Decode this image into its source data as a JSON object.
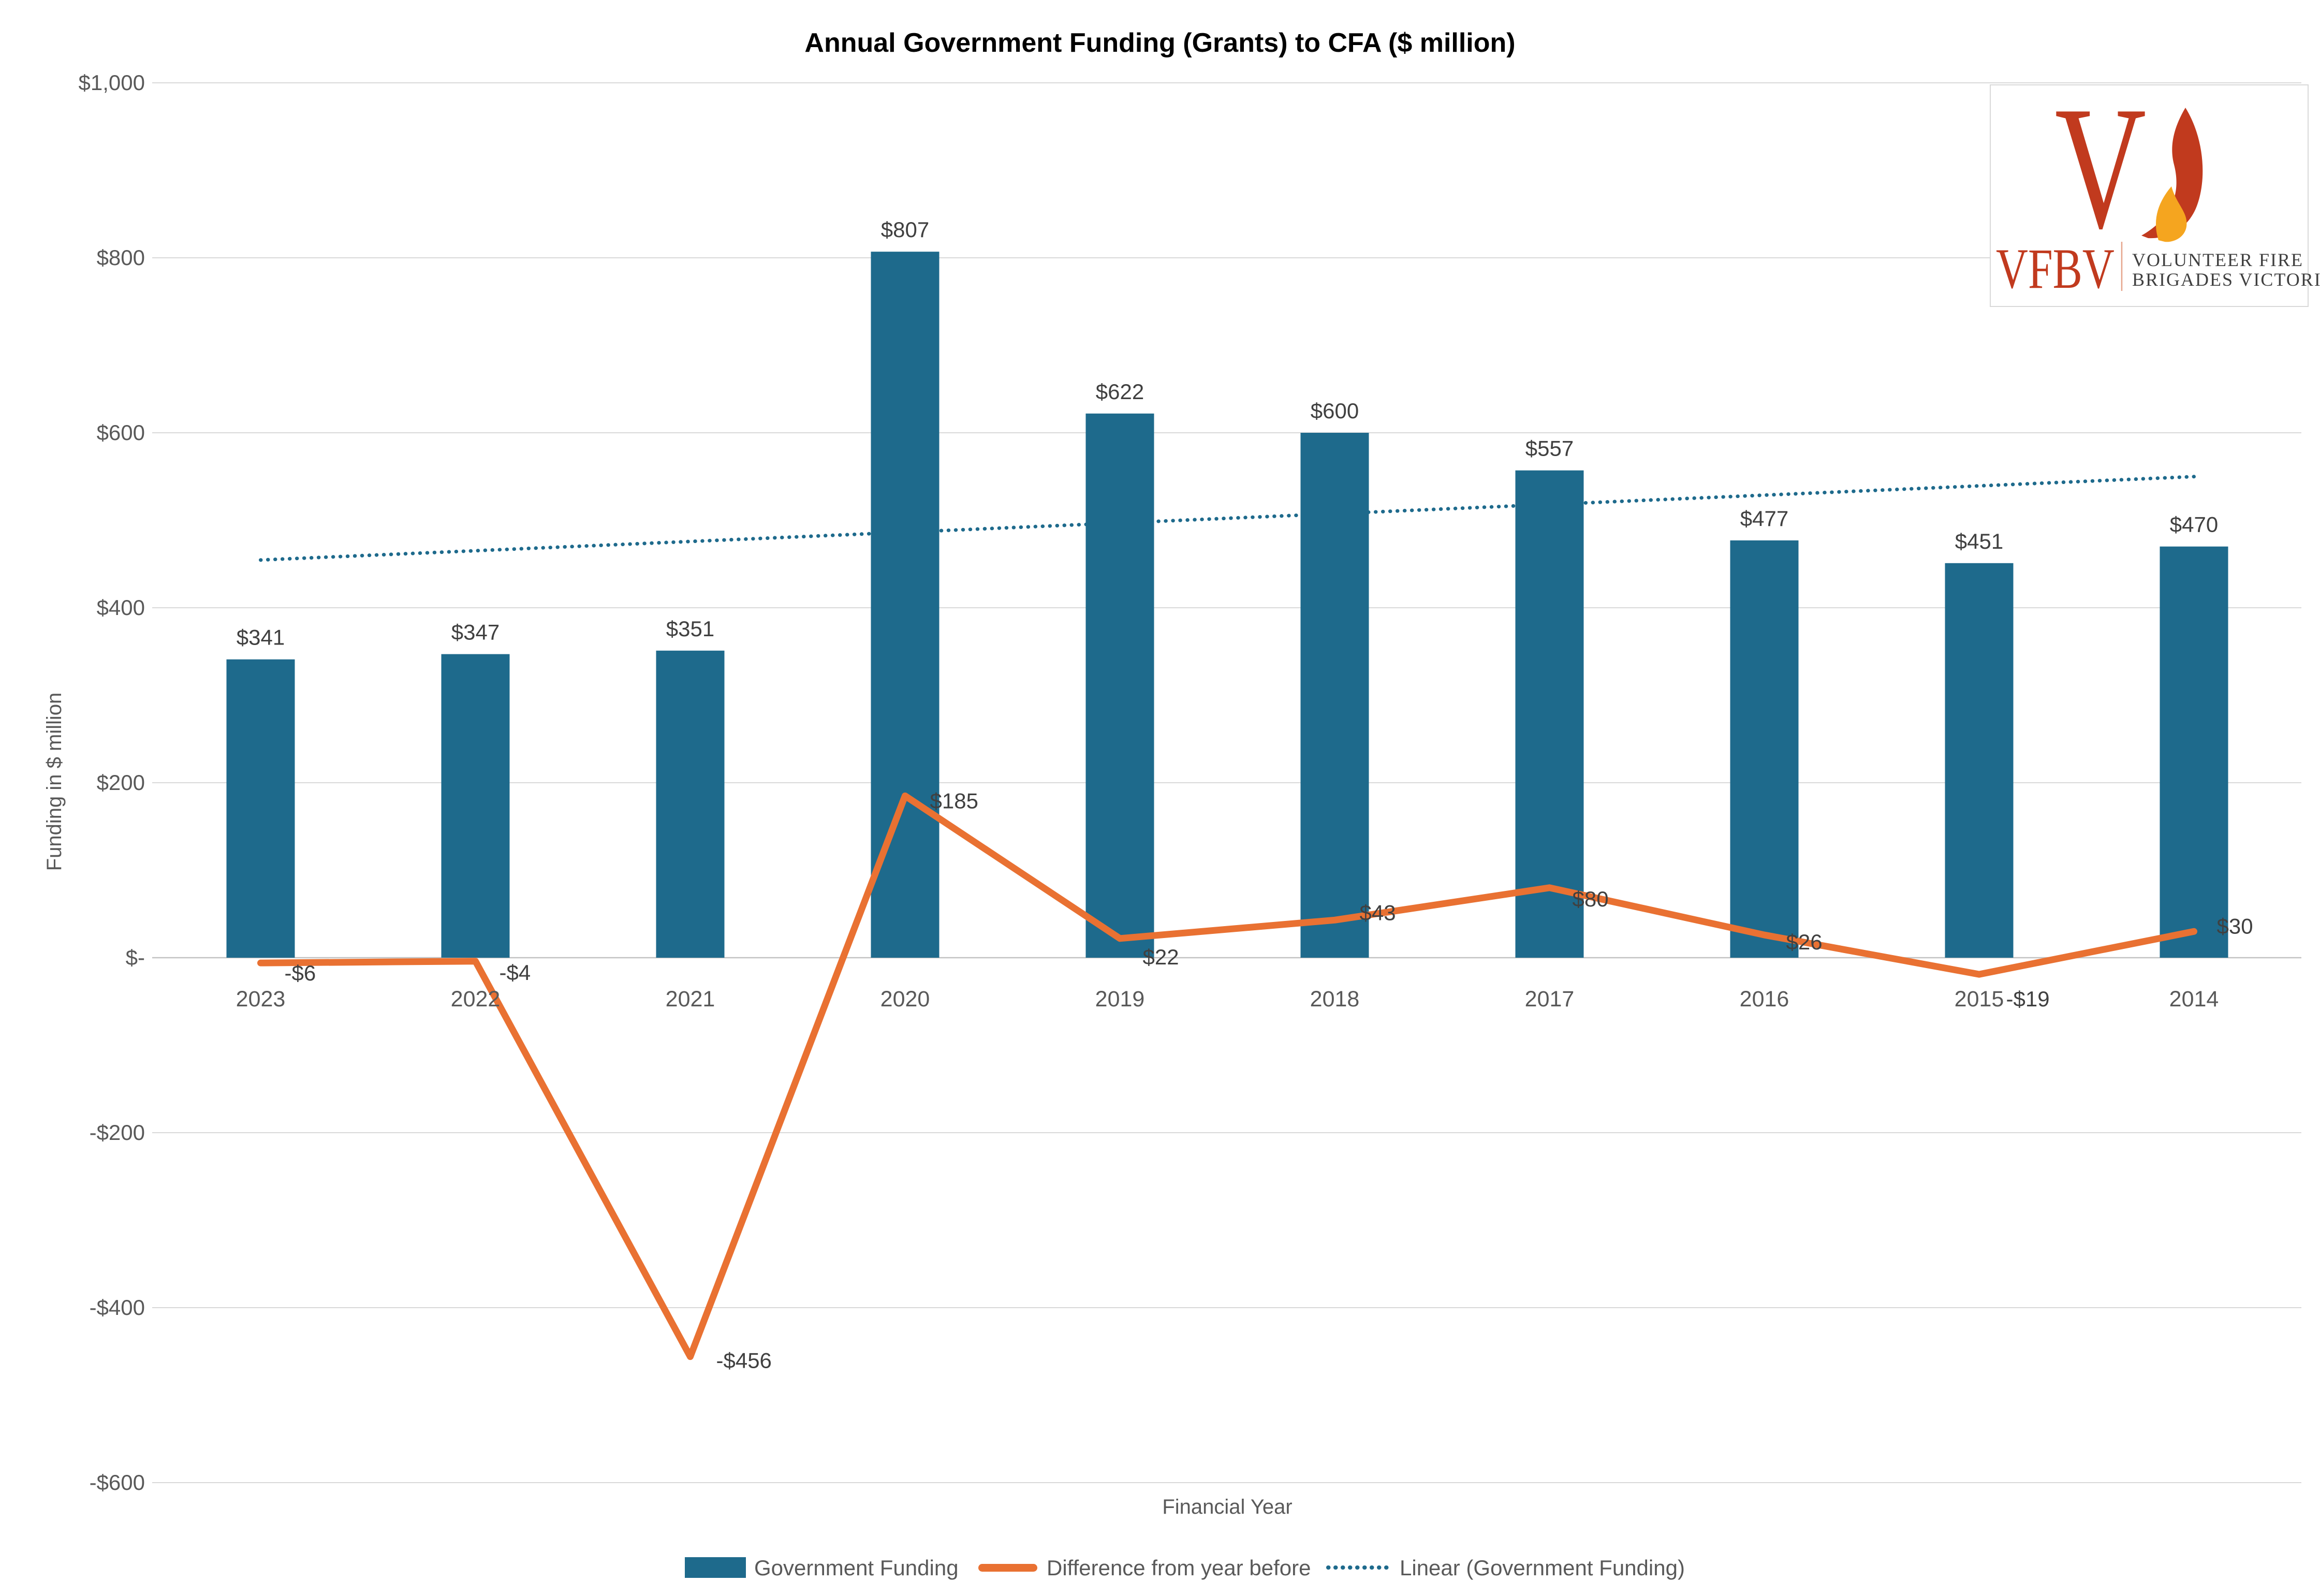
{
  "title": "Annual Government Funding (Grants) to CFA ($ million)",
  "x_axis_title": "Financial Year",
  "y_axis_title": "Funding in $ million",
  "logo": {
    "acronym": "VFBV",
    "name_line1": "VOLUNTEER FIRE",
    "name_line2": "BRIGADES VICTORIA",
    "mark": "flame-v-icon"
  },
  "colors": {
    "bar": "#1E6A8C",
    "diff_line": "#E97132",
    "trendline": "#1E6A8C",
    "gridline": "#D9D9D9",
    "zero_line": "#C3C3C3",
    "axis_text": "#595959",
    "data_label": "#404040",
    "logo_red": "#C13A1E",
    "logo_orange": "#F5A51F"
  },
  "legend": [
    {
      "label": "Government Funding",
      "swatch": "bar"
    },
    {
      "label": "Difference from year before",
      "swatch": "line"
    },
    {
      "label": "Linear (Government Funding)",
      "swatch": "dotted-line"
    }
  ],
  "chart_data": {
    "type": "bar",
    "title": "Annual Government Funding (Grants) to CFA ($ million)",
    "xlabel": "Financial Year",
    "ylabel": "Funding in $ million",
    "categories": [
      "2023",
      "2022",
      "2021",
      "2020",
      "2019",
      "2018",
      "2017",
      "2016",
      "2015",
      "2014"
    ],
    "series": [
      {
        "name": "Government Funding",
        "type": "bar",
        "values": [
          341,
          347,
          351,
          807,
          622,
          600,
          557,
          477,
          451,
          470
        ],
        "labels": [
          "$341",
          "$347",
          "$351",
          "$807",
          "$622",
          "$600",
          "$557",
          "$477",
          "$451",
          "$470"
        ]
      },
      {
        "name": "Difference from year before",
        "type": "line",
        "values": [
          -6,
          -4,
          -456,
          185,
          22,
          43,
          80,
          26,
          -19,
          30
        ],
        "labels": [
          "-$6",
          "-$4",
          "-$456",
          "$185",
          "$22",
          "$43",
          "$80",
          "$26",
          "-$19",
          "$30"
        ]
      },
      {
        "name": "Linear (Government Funding)",
        "type": "trendline",
        "trend_start": 454.6,
        "trend_end": 549.9
      }
    ],
    "y_ticks": [
      {
        "v": 1000,
        "label": "$1,000"
      },
      {
        "v": 800,
        "label": "$800"
      },
      {
        "v": 600,
        "label": "$600"
      },
      {
        "v": 400,
        "label": "$400"
      },
      {
        "v": 200,
        "label": "$200"
      },
      {
        "v": 0,
        "label": "$-"
      },
      {
        "v": -200,
        "label": "-$200"
      },
      {
        "v": -400,
        "label": "-$400"
      },
      {
        "v": -600,
        "label": "-$600"
      }
    ],
    "ylim": [
      -600,
      1000
    ],
    "grid": true,
    "legend_position": "bottom"
  }
}
